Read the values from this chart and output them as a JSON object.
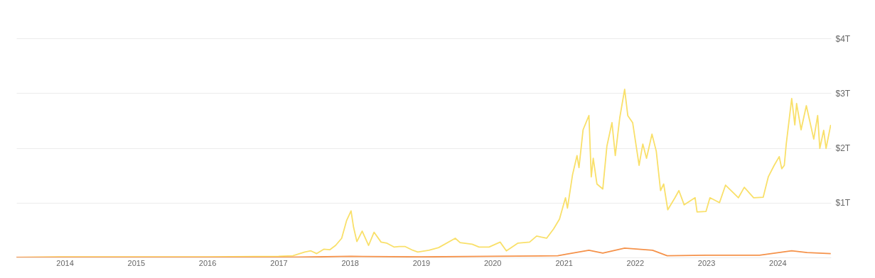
{
  "chart_data": {
    "type": "line",
    "xlim": [
      "2013-04-28",
      "2024-10-01"
    ],
    "ylim": [
      0,
      4
    ],
    "xticks": [
      "2014",
      "2015",
      "2016",
      "2017",
      "2018",
      "2019",
      "2020",
      "2021",
      "2022",
      "2023",
      "2024"
    ],
    "yticks": [
      {
        "value": 0,
        "label": null
      },
      {
        "value": 1,
        "label": "$1T"
      },
      {
        "value": 2,
        "label": "$2T"
      },
      {
        "value": 3,
        "label": "$3T"
      },
      {
        "value": 4,
        "label": "$4T"
      }
    ],
    "grid": "y",
    "marker": "none",
    "line_style": "solid",
    "series": [
      {
        "color": "#f9e06a",
        "x": [
          "2013-04-28",
          "2013-12-01",
          "2014-01-15",
          "2015-01-01",
          "2016-01-01",
          "2017-01-01",
          "2017-03-15",
          "2017-05-15",
          "2017-06-15",
          "2017-07-15",
          "2017-08-20",
          "2017-09-20",
          "2017-10-20",
          "2017-11-20",
          "2017-12-15",
          "2018-01-07",
          "2018-01-20",
          "2018-02-06",
          "2018-03-05",
          "2018-04-07",
          "2018-05-05",
          "2018-06-10",
          "2018-07-10",
          "2018-08-15",
          "2018-09-10",
          "2018-10-10",
          "2018-11-20",
          "2018-12-15",
          "2019-02-10",
          "2019-04-01",
          "2019-06-25",
          "2019-07-20",
          "2019-09-20",
          "2019-10-25",
          "2019-12-15",
          "2020-02-10",
          "2020-03-13",
          "2020-05-10",
          "2020-07-10",
          "2020-08-15",
          "2020-10-05",
          "2020-11-10",
          "2020-12-10",
          "2021-01-10",
          "2021-01-20",
          "2021-02-15",
          "2021-03-10",
          "2021-03-20",
          "2021-04-10",
          "2021-05-10",
          "2021-05-22",
          "2021-06-01",
          "2021-06-20",
          "2021-07-20",
          "2021-08-10",
          "2021-09-05",
          "2021-09-22",
          "2021-10-15",
          "2021-11-09",
          "2021-11-25",
          "2021-12-20",
          "2022-01-22",
          "2022-02-10",
          "2022-03-01",
          "2022-03-29",
          "2022-04-20",
          "2022-05-12",
          "2022-05-28",
          "2022-06-18",
          "2022-07-25",
          "2022-08-14",
          "2022-09-10",
          "2022-11-05",
          "2022-11-15",
          "2022-12-31",
          "2023-01-20",
          "2023-03-10",
          "2023-04-10",
          "2023-06-15",
          "2023-07-15",
          "2023-09-01",
          "2023-10-20",
          "2023-11-15",
          "2023-12-15",
          "2024-01-10",
          "2024-01-23",
          "2024-02-05",
          "2024-02-15",
          "2024-03-14",
          "2024-03-30",
          "2024-04-08",
          "2024-05-01",
          "2024-05-28",
          "2024-07-05",
          "2024-07-25",
          "2024-08-05",
          "2024-08-25",
          "2024-09-06",
          "2024-09-30"
        ],
        "values": [
          0.0,
          0.01,
          0.01,
          0.01,
          0.01,
          0.02,
          0.03,
          0.1,
          0.12,
          0.07,
          0.15,
          0.14,
          0.22,
          0.35,
          0.67,
          0.85,
          0.55,
          0.29,
          0.48,
          0.22,
          0.46,
          0.28,
          0.26,
          0.19,
          0.2,
          0.2,
          0.13,
          0.1,
          0.13,
          0.18,
          0.35,
          0.27,
          0.24,
          0.19,
          0.19,
          0.28,
          0.12,
          0.26,
          0.28,
          0.39,
          0.35,
          0.52,
          0.7,
          1.09,
          0.9,
          1.51,
          1.86,
          1.64,
          2.33,
          2.59,
          1.47,
          1.81,
          1.34,
          1.25,
          2.03,
          2.46,
          1.86,
          2.55,
          3.07,
          2.59,
          2.46,
          1.68,
          2.07,
          1.81,
          2.25,
          1.94,
          1.22,
          1.34,
          0.87,
          1.09,
          1.22,
          0.96,
          1.09,
          0.83,
          0.84,
          1.09,
          1.0,
          1.32,
          1.09,
          1.28,
          1.09,
          1.1,
          1.47,
          1.68,
          1.84,
          1.62,
          1.68,
          2.07,
          2.9,
          2.42,
          2.81,
          2.33,
          2.77,
          2.16,
          2.59,
          1.99,
          2.32,
          1.99,
          2.42
        ]
      },
      {
        "color": "#f5924a",
        "x": [
          "2013-04-28",
          "2017-01-01",
          "2018-01-07",
          "2019-01-01",
          "2020-01-01",
          "2020-12-01",
          "2021-01-15",
          "2021-05-10",
          "2021-07-20",
          "2021-11-09",
          "2022-04-01",
          "2022-06-15",
          "2023-01-01",
          "2023-10-01",
          "2024-03-14",
          "2024-06-01",
          "2024-09-30"
        ],
        "values": [
          0.0,
          0.0,
          0.02,
          0.01,
          0.02,
          0.03,
          0.06,
          0.13,
          0.08,
          0.17,
          0.13,
          0.03,
          0.04,
          0.04,
          0.12,
          0.09,
          0.07
        ]
      }
    ]
  }
}
